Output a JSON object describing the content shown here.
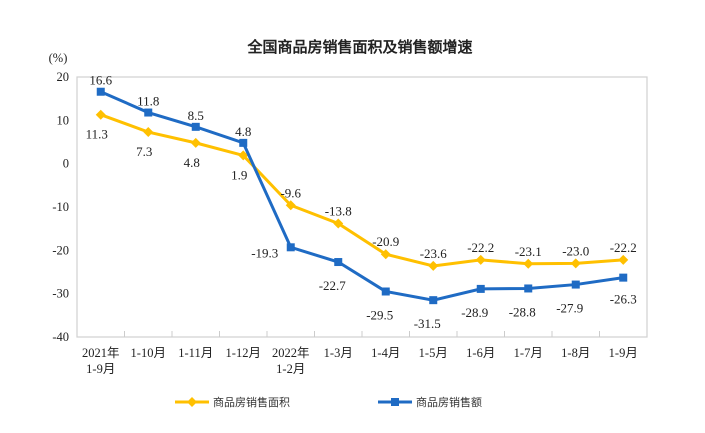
{
  "chart_data": {
    "type": "line",
    "title": "全国商品房销售面积及销售额增速",
    "ylabel": "(%)",
    "xlabel": "",
    "ylim": [
      -40,
      20
    ],
    "yticks": [
      20,
      10,
      0,
      -10,
      -20,
      -30,
      -40
    ],
    "categories": [
      [
        "2021年",
        "1-9月"
      ],
      [
        "1-10月"
      ],
      [
        "1-11月"
      ],
      [
        "1-12月"
      ],
      [
        "2022年",
        "1-2月"
      ],
      [
        "1-3月"
      ],
      [
        "1-4月"
      ],
      [
        "1-5月"
      ],
      [
        "1-6月"
      ],
      [
        "1-7月"
      ],
      [
        "1-8月"
      ],
      [
        "1-9月"
      ]
    ],
    "series": [
      {
        "name": "商品房销售面积",
        "color": "#FFC000",
        "marker": "diamond",
        "values": [
          11.3,
          7.3,
          4.8,
          1.9,
          -9.6,
          -13.8,
          -20.9,
          -23.6,
          -22.2,
          -23.1,
          -23.0,
          -22.2
        ],
        "labels": [
          "11.3",
          "7.3",
          "4.8",
          "1.9",
          "-9.6",
          "-13.8",
          "-20.9",
          "-23.6",
          "-22.2",
          "-23.1",
          "-23.0",
          "-22.2"
        ]
      },
      {
        "name": "商品房销售额",
        "color": "#1F6BC4",
        "marker": "square",
        "values": [
          16.6,
          11.8,
          8.5,
          4.8,
          -19.3,
          -22.7,
          -29.5,
          -31.5,
          -28.9,
          -28.8,
          -27.9,
          -26.3
        ],
        "labels": [
          "16.6",
          "11.8",
          "8.5",
          "4.8",
          "-19.3",
          "-22.7",
          "-29.5",
          "-31.5",
          "-28.9",
          "-28.8",
          "-27.9",
          "-26.3"
        ]
      }
    ],
    "legend": "bottom",
    "grid": false
  }
}
